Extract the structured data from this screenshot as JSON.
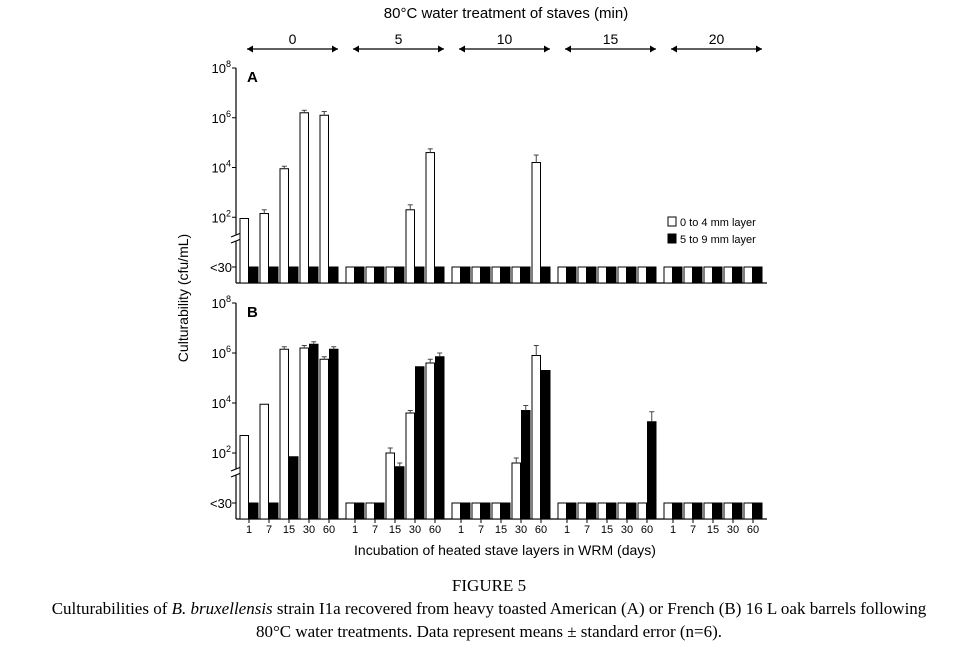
{
  "title": "80°C water treatment of staves (min)",
  "ylabel": "Culturability (cfu/mL)",
  "xlabel": "Incubation of heated stave layers in WRM (days)",
  "groups": [
    "0",
    "5",
    "10",
    "15",
    "20"
  ],
  "days": [
    "1",
    "7",
    "15",
    "30",
    "60"
  ],
  "y_ticks": [
    {
      "base": "10",
      "exp": "8",
      "log": 8
    },
    {
      "base": "10",
      "exp": "6",
      "log": 6
    },
    {
      "base": "10",
      "exp": "4",
      "log": 4
    },
    {
      "base": "10",
      "exp": "2",
      "log": 2
    }
  ],
  "below_detection_label": "<30",
  "legend": [
    "0 to 4 mm layer",
    "5 to 9 mm layer"
  ],
  "colors": {
    "open_fill": "#ffffff",
    "solid_fill": "#000000",
    "stroke": "#000000"
  },
  "figure_label": "FIGURE 5",
  "caption": {
    "pre": "Culturabilities of ",
    "species": "B. bruxellensis",
    "post": " strain I1a recovered from heavy toasted American (A) or French (B) 16 L oak barrels following",
    "line2": "80°C water treatments. Data represent means ± standard error (n=6)."
  },
  "chart_data": [
    {
      "type": "bar",
      "panel": "A",
      "yscale": "log10",
      "ylim_log10": [
        0,
        8
      ],
      "categories_groups": [
        "0",
        "5",
        "10",
        "15",
        "20"
      ],
      "categories_days": [
        "1",
        "7",
        "15",
        "30",
        "60"
      ],
      "series": [
        {
          "name": "0 to 4 mm layer",
          "values_log10": [
            1.95,
            2.15,
            3.95,
            6.2,
            6.1,
            null,
            null,
            null,
            2.3,
            4.6,
            null,
            null,
            null,
            null,
            4.2,
            null,
            null,
            null,
            null,
            null,
            null,
            null,
            null,
            null,
            null
          ],
          "err_log10": [
            0,
            0.15,
            0.1,
            0.1,
            0.15,
            0,
            0,
            0,
            0.2,
            0.15,
            0,
            0,
            0,
            0,
            0.3,
            0,
            0,
            0,
            0,
            0,
            0,
            0,
            0,
            0,
            0
          ]
        },
        {
          "name": "5 to 9 mm layer",
          "values_log10": [
            null,
            null,
            null,
            null,
            null,
            null,
            null,
            null,
            null,
            null,
            null,
            null,
            null,
            null,
            null,
            null,
            null,
            null,
            null,
            null,
            null,
            null,
            null,
            null,
            null
          ],
          "err_log10": [
            0,
            0,
            0,
            0,
            0,
            0,
            0,
            0,
            0,
            0,
            0,
            0,
            0,
            0,
            0,
            0,
            0,
            0,
            0,
            0,
            0,
            0,
            0,
            0,
            0
          ]
        }
      ]
    },
    {
      "type": "bar",
      "panel": "B",
      "yscale": "log10",
      "ylim_log10": [
        0,
        8
      ],
      "categories_groups": [
        "0",
        "5",
        "10",
        "15",
        "20"
      ],
      "categories_days": [
        "1",
        "7",
        "15",
        "30",
        "60"
      ],
      "series": [
        {
          "name": "0 to 4 mm layer",
          "values_log10": [
            2.7,
            3.95,
            6.15,
            6.2,
            5.75,
            null,
            null,
            2.0,
            3.6,
            5.6,
            null,
            null,
            null,
            1.6,
            5.9,
            null,
            null,
            null,
            null,
            null,
            null,
            null,
            null,
            null,
            null
          ],
          "err_log10": [
            0,
            0,
            0.1,
            0.1,
            0.1,
            0,
            0,
            0.2,
            0.1,
            0.15,
            0,
            0,
            0,
            0.2,
            0.4,
            0,
            0,
            0,
            0,
            0,
            0,
            0,
            0,
            0,
            0
          ]
        },
        {
          "name": "5 to 9 mm layer",
          "values_log10": [
            null,
            null,
            1.85,
            6.35,
            6.15,
            null,
            null,
            1.45,
            5.45,
            5.85,
            null,
            null,
            null,
            3.7,
            5.3,
            null,
            null,
            null,
            null,
            3.25,
            null,
            null,
            null,
            null,
            null
          ],
          "err_log10": [
            0,
            0,
            0,
            0.1,
            0.1,
            0,
            0,
            0.15,
            0,
            0.15,
            0,
            0,
            0,
            0.2,
            0,
            0,
            0,
            0,
            0,
            0.4,
            0,
            0,
            0,
            0,
            0
          ]
        }
      ]
    }
  ]
}
